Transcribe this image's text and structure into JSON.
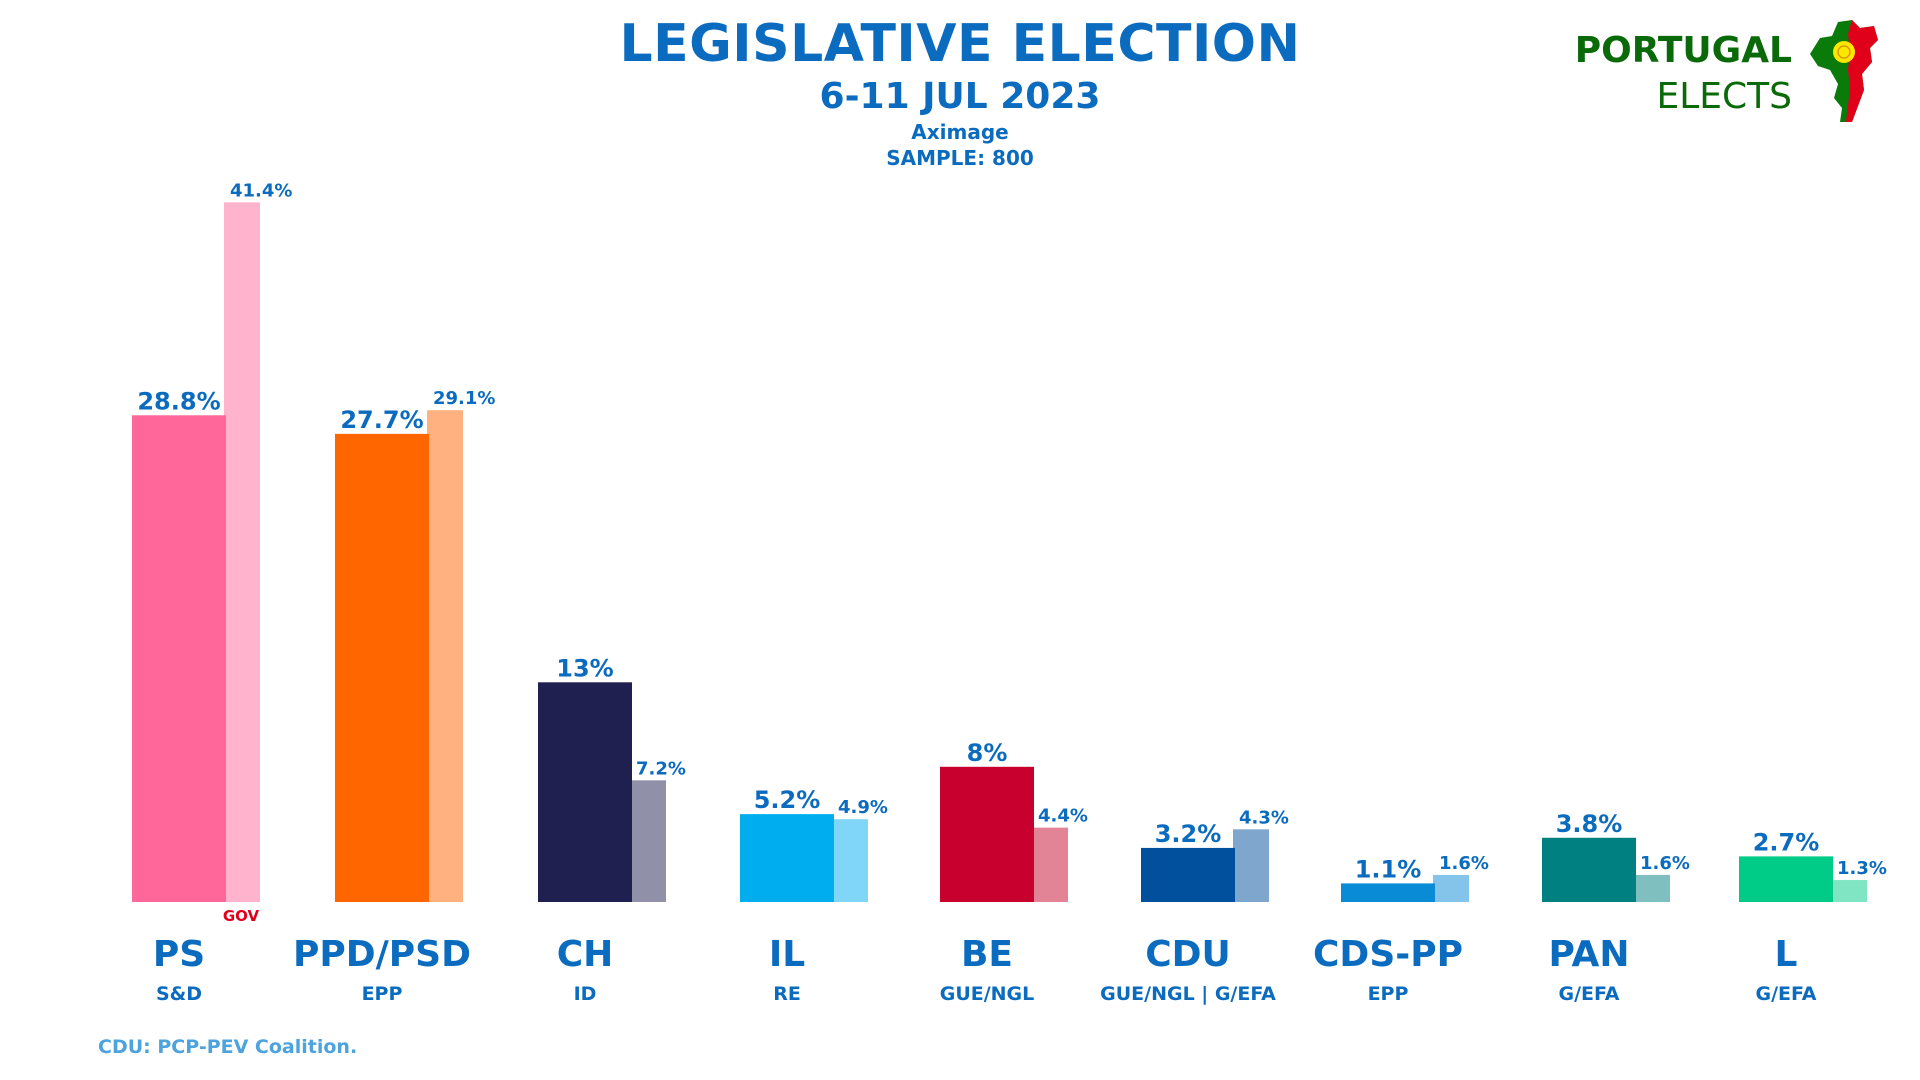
{
  "header": {
    "title": "LEGISLATIVE ELECTION",
    "date": "6-11 JUL 2023",
    "pollster": "Aximage",
    "sample": "SAMPLE: 800"
  },
  "logo": {
    "line1": "PORTUGAL",
    "line2": "ELECTS",
    "icon": "portugal-map-icon"
  },
  "footnote": "CDU: PCP-PEV Coalition.",
  "chart_data": {
    "type": "bar",
    "categories": [
      "PS",
      "PPD/PSD",
      "CH",
      "IL",
      "BE",
      "CDU",
      "CDS-PP",
      "PAN",
      "L"
    ],
    "groups": [
      "S&D",
      "EPP",
      "ID",
      "RE",
      "GUE/NGL",
      "GUE/NGL | G/EFA",
      "EPP",
      "G/EFA",
      "G/EFA"
    ],
    "series": [
      {
        "values": [
          28.8,
          27.7,
          13,
          5.2,
          8,
          3.2,
          1.1,
          3.8,
          2.7
        ],
        "labels": [
          "28.8%",
          "27.7%",
          "13%",
          "5.2%",
          "8%",
          "3.2%",
          "1.1%",
          "3.8%",
          "2.7%"
        ],
        "colors": [
          "#ff6699",
          "#ff6600",
          "#202050",
          "#00aeef",
          "#c8002e",
          "#00509e",
          "#0a8bd6",
          "#008080",
          "#00cc88"
        ]
      },
      {
        "values": [
          41.4,
          29.1,
          7.2,
          4.9,
          4.4,
          4.3,
          1.6,
          1.6,
          1.3
        ],
        "labels": [
          "41.4%",
          "29.1%",
          "7.2%",
          "4.9%",
          "4.4%",
          "4.3%",
          "1.6%",
          "1.6%",
          "1.3%"
        ],
        "colors": [
          "#ffb3cc",
          "#ffb27f",
          "#9090a8",
          "#80d6f7",
          "#e38396",
          "#7fa7ce",
          "#84c4ea",
          "#7fbfbf",
          "#80e5c3"
        ]
      }
    ],
    "annotation": "GOV",
    "annotation_category": "PS",
    "ylim": [
      0,
      41.4
    ],
    "grid": false,
    "legend": "none",
    "colors": {
      "value_label": "#0b6bbf",
      "category_label": "#0b6bbf",
      "annotation": "#e0001a"
    }
  }
}
